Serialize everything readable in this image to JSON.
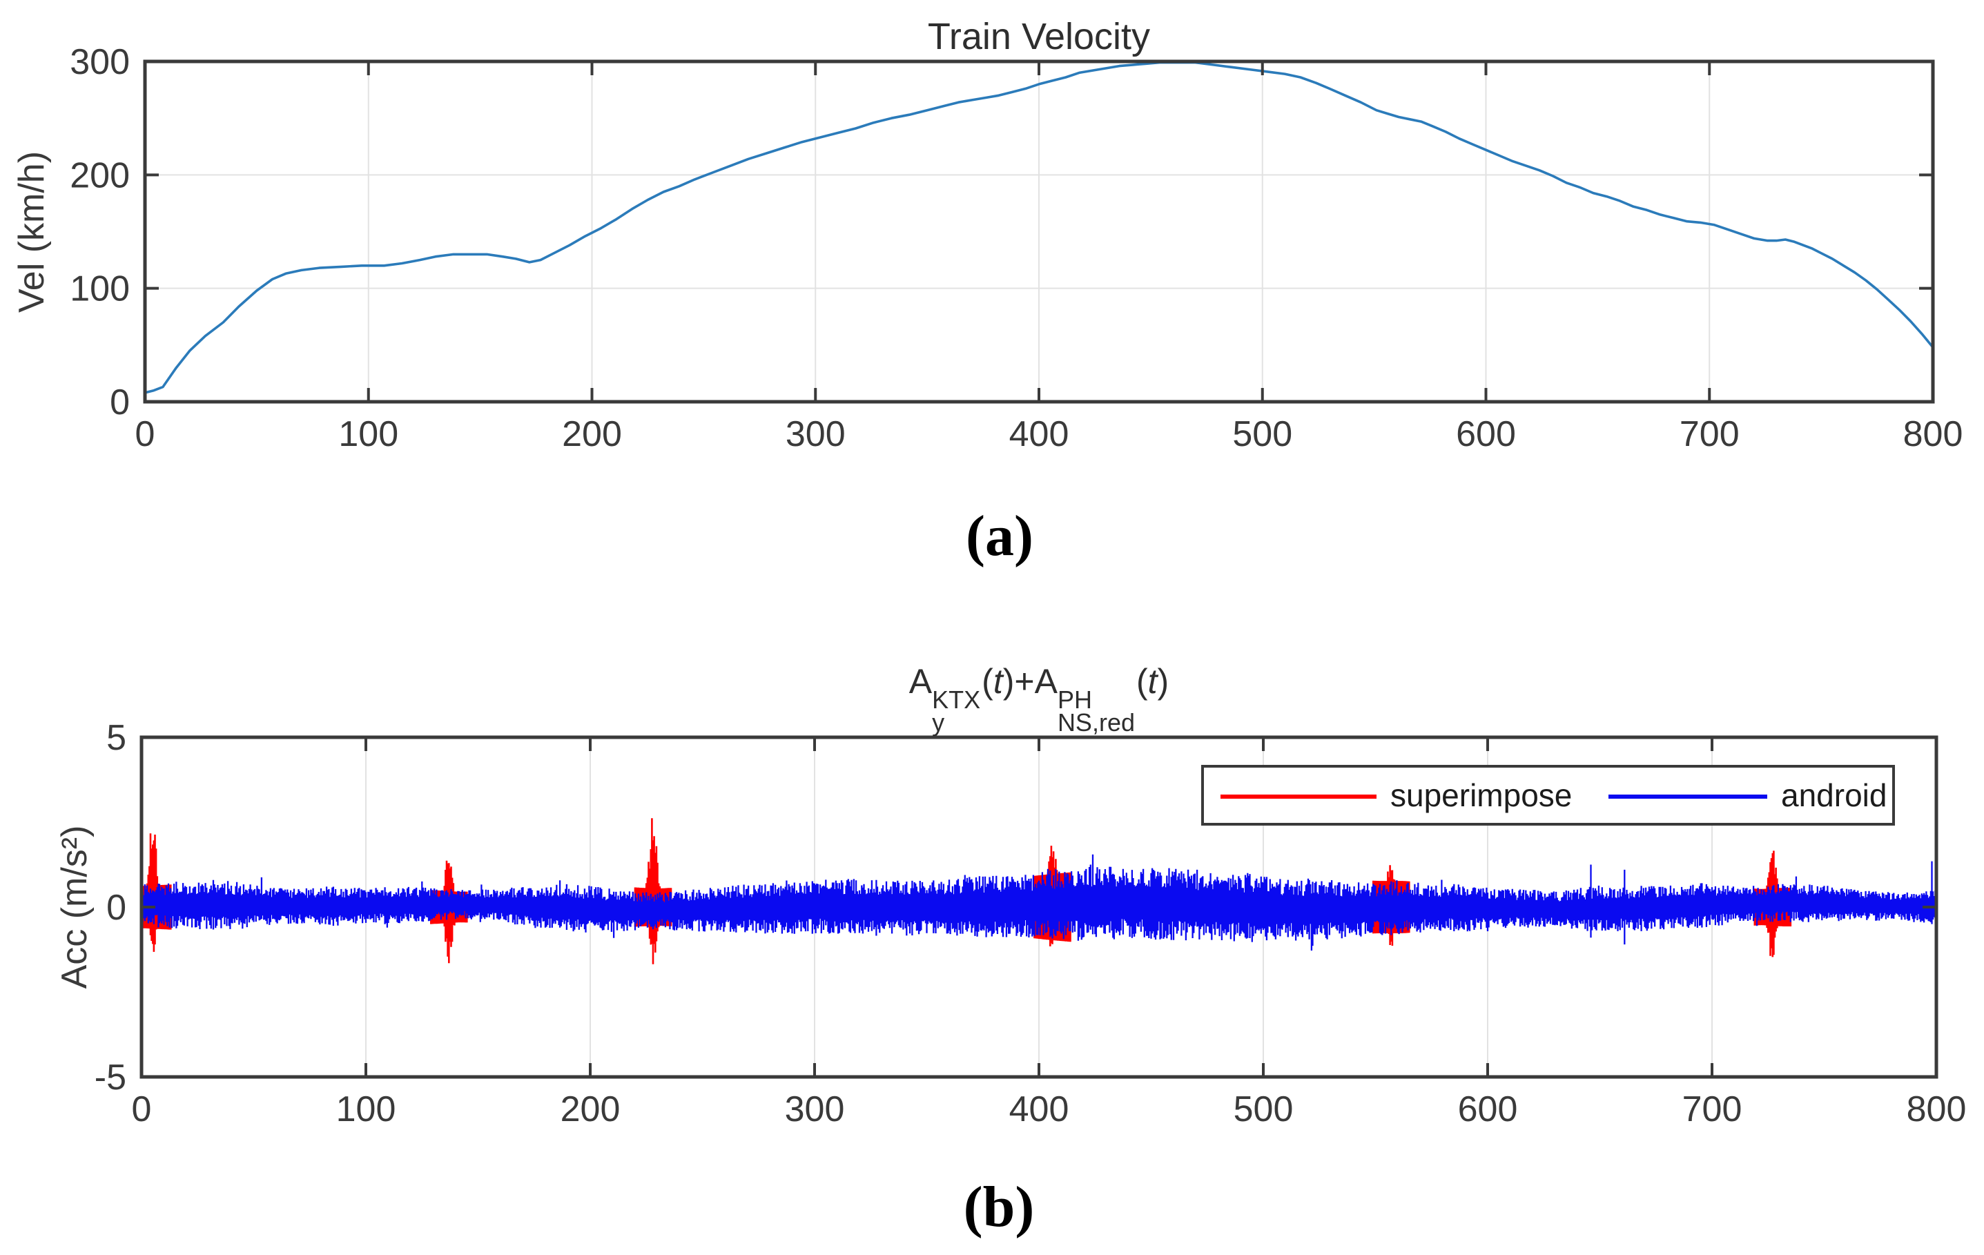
{
  "figure": {
    "panel_a_label": "(a)",
    "panel_b_label": "(b)"
  },
  "colors": {
    "axis": "#3a3a3a",
    "grid": "#e2e2e2",
    "tick_label": "#3a3a3a",
    "velocity_line": "#2b7bba",
    "superimpose": "#ff0000",
    "android": "#0a0af0"
  },
  "chart_data": [
    {
      "type": "line",
      "title": "Train Velocity",
      "xlabel": "",
      "ylabel": "Vel (km/h)",
      "xlim": [
        0,
        800
      ],
      "ylim": [
        0,
        300
      ],
      "xticks": [
        0,
        100,
        200,
        300,
        400,
        500,
        600,
        700,
        800
      ],
      "yticks": [
        0,
        100,
        200,
        300
      ],
      "grid": true,
      "series": [
        {
          "name": "velocity",
          "color_key": "velocity_line",
          "points": [
            [
              0,
              8
            ],
            [
              4,
              10
            ],
            [
              8,
              13
            ],
            [
              14,
              30
            ],
            [
              20,
              45
            ],
            [
              27,
              58
            ],
            [
              35,
              70
            ],
            [
              42,
              84
            ],
            [
              50,
              98
            ],
            [
              57,
              108
            ],
            [
              63,
              113
            ],
            [
              70,
              116
            ],
            [
              78,
              118
            ],
            [
              88,
              119
            ],
            [
              97,
              120
            ],
            [
              107,
              120
            ],
            [
              115,
              122
            ],
            [
              123,
              125
            ],
            [
              130,
              128
            ],
            [
              138,
              130
            ],
            [
              146,
              130
            ],
            [
              153,
              130
            ],
            [
              160,
              128
            ],
            [
              166,
              126
            ],
            [
              172,
              123
            ],
            [
              177,
              125
            ],
            [
              183,
              131
            ],
            [
              190,
              138
            ],
            [
              197,
              146
            ],
            [
              204,
              153
            ],
            [
              211,
              161
            ],
            [
              218,
              170
            ],
            [
              225,
              178
            ],
            [
              232,
              185
            ],
            [
              239,
              190
            ],
            [
              246,
              196
            ],
            [
              254,
              202
            ],
            [
              262,
              208
            ],
            [
              270,
              214
            ],
            [
              278,
              219
            ],
            [
              286,
              224
            ],
            [
              294,
              229
            ],
            [
              302,
              233
            ],
            [
              310,
              237
            ],
            [
              318,
              241
            ],
            [
              326,
              246
            ],
            [
              334,
              250
            ],
            [
              342,
              253
            ],
            [
              350,
              257
            ],
            [
              358,
              261
            ],
            [
              364,
              264
            ],
            [
              370,
              266
            ],
            [
              376,
              268
            ],
            [
              382,
              270
            ],
            [
              388,
              273
            ],
            [
              394,
              276
            ],
            [
              400,
              280
            ],
            [
              406,
              283
            ],
            [
              412,
              286
            ],
            [
              418,
              290
            ],
            [
              424,
              292
            ],
            [
              430,
              294
            ],
            [
              436,
              296
            ],
            [
              442,
              297
            ],
            [
              448,
              298
            ],
            [
              454,
              299
            ],
            [
              462,
              299
            ],
            [
              470,
              299
            ],
            [
              478,
              297
            ],
            [
              486,
              295
            ],
            [
              494,
              293
            ],
            [
              502,
              291
            ],
            [
              510,
              289
            ],
            [
              517,
              286
            ],
            [
              524,
              281
            ],
            [
              530,
              276
            ],
            [
              537,
              270
            ],
            [
              544,
              264
            ],
            [
              551,
              257
            ],
            [
              556,
              254
            ],
            [
              561,
              251
            ],
            [
              566,
              249
            ],
            [
              571,
              247
            ],
            [
              576,
              243
            ],
            [
              582,
              238
            ],
            [
              588,
              232
            ],
            [
              594,
              227
            ],
            [
              600,
              222
            ],
            [
              606,
              217
            ],
            [
              612,
              212
            ],
            [
              618,
              208
            ],
            [
              624,
              204
            ],
            [
              630,
              199
            ],
            [
              636,
              193
            ],
            [
              642,
              189
            ],
            [
              648,
              184
            ],
            [
              654,
              181
            ],
            [
              660,
              177
            ],
            [
              666,
              172
            ],
            [
              672,
              169
            ],
            [
              678,
              165
            ],
            [
              684,
              162
            ],
            [
              690,
              159
            ],
            [
              696,
              158
            ],
            [
              702,
              156
            ],
            [
              708,
              152
            ],
            [
              714,
              148
            ],
            [
              720,
              144
            ],
            [
              726,
              142
            ],
            [
              730,
              142
            ],
            [
              734,
              143
            ],
            [
              738,
              141
            ],
            [
              742,
              138
            ],
            [
              746,
              135
            ],
            [
              750,
              131
            ],
            [
              755,
              126
            ],
            [
              760,
              120
            ],
            [
              765,
              114
            ],
            [
              770,
              107
            ],
            [
              775,
              99
            ],
            [
              780,
              90
            ],
            [
              785,
              81
            ],
            [
              790,
              71
            ],
            [
              795,
              60
            ],
            [
              800,
              48
            ]
          ]
        }
      ]
    },
    {
      "type": "line",
      "title_plain": "A_y^KTX(t)+A_NS,red^PH(t)",
      "title_parts": [
        {
          "text": "A"
        },
        {
          "sup": "KTX",
          "sub": "y"
        },
        {
          "text": "("
        },
        {
          "italic": "t"
        },
        {
          "text": ")+A"
        },
        {
          "sup": "PH",
          "sub": "NS,red"
        },
        {
          "text": "("
        },
        {
          "italic": "t"
        },
        {
          "text": ")"
        }
      ],
      "xlabel": "",
      "ylabel": "Acc (m/s²)",
      "xlim": [
        0,
        800
      ],
      "ylim": [
        -5,
        5
      ],
      "xticks": [
        0,
        100,
        200,
        300,
        400,
        500,
        600,
        700,
        800
      ],
      "yticks": [
        -5,
        0,
        5
      ],
      "grid": true,
      "legend": [
        {
          "label": "superimpose",
          "color_key": "superimpose"
        },
        {
          "label": "android",
          "color_key": "android"
        }
      ],
      "noise_seed": 20,
      "noise_envelope": [
        [
          0,
          0.55
        ],
        [
          15,
          0.6
        ],
        [
          30,
          0.65
        ],
        [
          45,
          0.6
        ],
        [
          60,
          0.48
        ],
        [
          72,
          0.45
        ],
        [
          82,
          0.55
        ],
        [
          92,
          0.5
        ],
        [
          102,
          0.45
        ],
        [
          112,
          0.5
        ],
        [
          122,
          0.45
        ],
        [
          132,
          0.42
        ],
        [
          142,
          0.38
        ],
        [
          152,
          0.4
        ],
        [
          162,
          0.45
        ],
        [
          172,
          0.52
        ],
        [
          182,
          0.6
        ],
        [
          192,
          0.63
        ],
        [
          202,
          0.6
        ],
        [
          212,
          0.55
        ],
        [
          222,
          0.5
        ],
        [
          232,
          0.48
        ],
        [
          242,
          0.52
        ],
        [
          252,
          0.56
        ],
        [
          262,
          0.6
        ],
        [
          272,
          0.64
        ],
        [
          282,
          0.68
        ],
        [
          292,
          0.7
        ],
        [
          302,
          0.7
        ],
        [
          312,
          0.73
        ],
        [
          322,
          0.7
        ],
        [
          332,
          0.72
        ],
        [
          342,
          0.74
        ],
        [
          352,
          0.72
        ],
        [
          362,
          0.75
        ],
        [
          372,
          0.8
        ],
        [
          382,
          0.84
        ],
        [
          392,
          0.8
        ],
        [
          402,
          0.88
        ],
        [
          412,
          0.94
        ],
        [
          422,
          1.0
        ],
        [
          432,
          0.95
        ],
        [
          442,
          0.9
        ],
        [
          452,
          0.95
        ],
        [
          462,
          0.92
        ],
        [
          472,
          0.9
        ],
        [
          482,
          0.86
        ],
        [
          492,
          0.9
        ],
        [
          502,
          0.85
        ],
        [
          512,
          0.8
        ],
        [
          522,
          0.8
        ],
        [
          532,
          0.76
        ],
        [
          542,
          0.72
        ],
        [
          552,
          0.7
        ],
        [
          562,
          0.7
        ],
        [
          572,
          0.66
        ],
        [
          582,
          0.62
        ],
        [
          592,
          0.6
        ],
        [
          602,
          0.52
        ],
        [
          612,
          0.5
        ],
        [
          622,
          0.5
        ],
        [
          632,
          0.46
        ],
        [
          642,
          0.58
        ],
        [
          652,
          0.6
        ],
        [
          662,
          0.55
        ],
        [
          672,
          0.6
        ],
        [
          682,
          0.56
        ],
        [
          692,
          0.6
        ],
        [
          702,
          0.55
        ],
        [
          712,
          0.5
        ],
        [
          722,
          0.46
        ],
        [
          732,
          0.5
        ],
        [
          742,
          0.5
        ],
        [
          752,
          0.46
        ],
        [
          762,
          0.4
        ],
        [
          772,
          0.4
        ],
        [
          782,
          0.36
        ],
        [
          792,
          0.4
        ],
        [
          800,
          0.44
        ]
      ],
      "red_spikes": [
        {
          "x": 5,
          "up": 2.3,
          "down": 1.2
        },
        {
          "x": 137,
          "up": 1.55,
          "down": 1.35
        },
        {
          "x": 228,
          "up": 2.4,
          "down": 1.5
        },
        {
          "x": 406,
          "up": 1.9,
          "down": 1.25
        },
        {
          "x": 557,
          "up": 1.4,
          "down": 1.05
        },
        {
          "x": 727,
          "up": 1.6,
          "down": 1.55
        }
      ],
      "blue_spikes": [
        {
          "x": 424,
          "up": 1.55,
          "down": 0.8
        },
        {
          "x": 646,
          "up": 1.25,
          "down": 0.9
        },
        {
          "x": 661,
          "up": 1.1,
          "down": 1.1
        },
        {
          "x": 798,
          "up": 1.35,
          "down": 0.5
        }
      ]
    }
  ]
}
